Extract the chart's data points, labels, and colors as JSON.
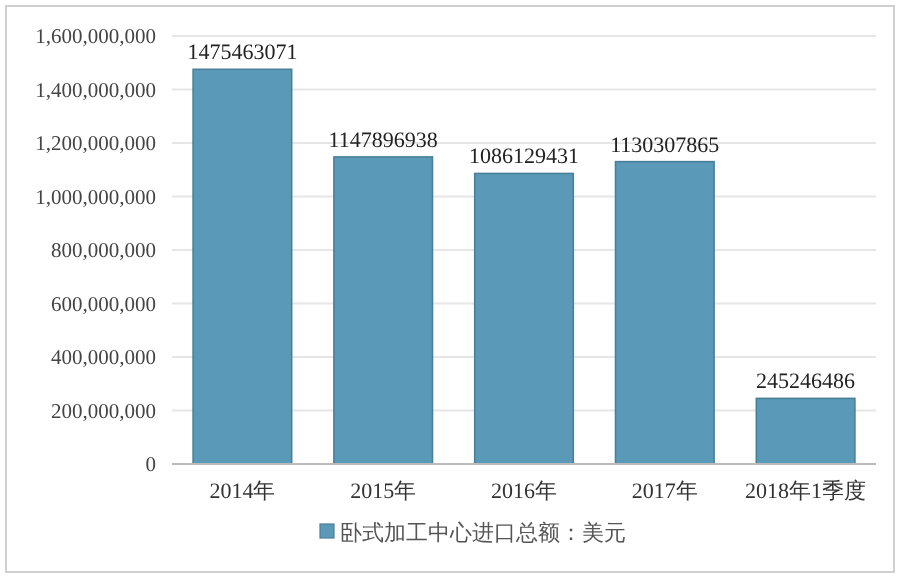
{
  "chart_data": {
    "type": "bar",
    "categories": [
      "2014年",
      "2015年",
      "2016年",
      "2017年",
      "2018年1季度"
    ],
    "series": [
      {
        "name": "卧式加工中心进口总额：美元",
        "color": "#5a9ab8",
        "values": [
          1475463071,
          1147896938,
          1086129431,
          1130307865,
          245246486
        ]
      }
    ],
    "ylim": [
      0,
      1600000000
    ],
    "yticks": [
      {
        "value": 0,
        "label": "0"
      },
      {
        "value": 200000000,
        "label": "200,000,000"
      },
      {
        "value": 400000000,
        "label": "400,000,000"
      },
      {
        "value": 600000000,
        "label": "600,000,000"
      },
      {
        "value": 800000000,
        "label": "800,000,000"
      },
      {
        "value": 1000000000,
        "label": "1,000,000,000"
      },
      {
        "value": 1200000000,
        "label": "1,200,000,000"
      },
      {
        "value": 1400000000,
        "label": "1,400,000,000"
      },
      {
        "value": 1600000000,
        "label": "1,600,000,000"
      }
    ],
    "grid": "y",
    "legend": "bottom",
    "data_labels": true
  }
}
